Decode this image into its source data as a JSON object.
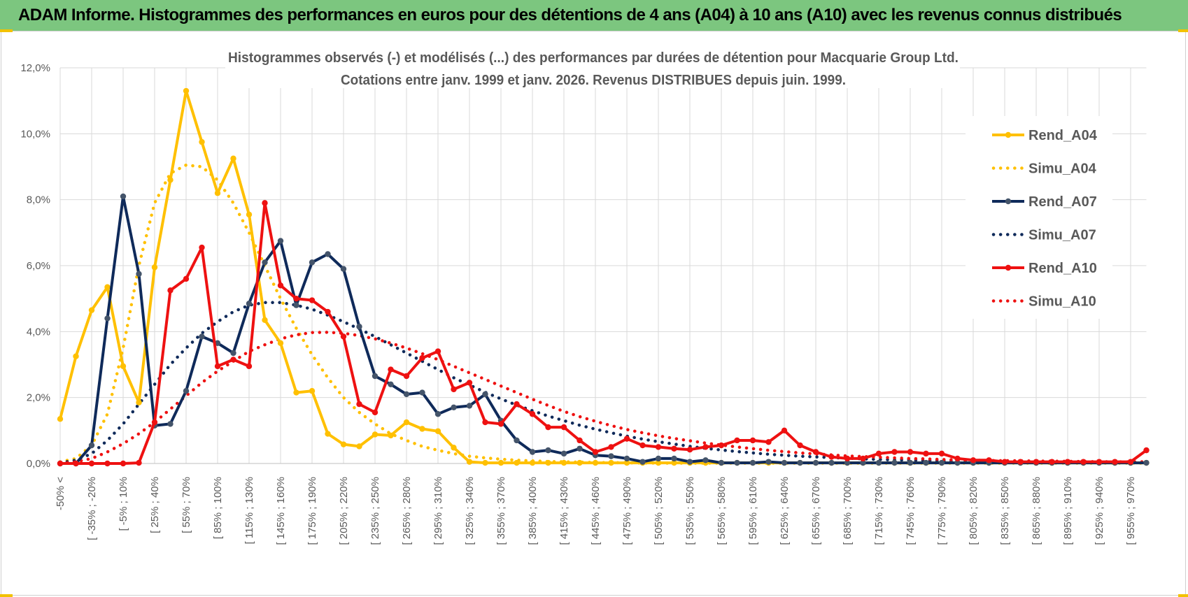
{
  "page": {
    "title": "ADAM Informe. Histogrammes des performances en euros pour des détentions de 4 ans (A04) à 10 ans (A10) avec les revenus connus distribués"
  },
  "chart_data": {
    "type": "line",
    "title": "Histogrammes observés (-) et modélisés (...) des performances par durées de détention pour Macquarie Group Ltd.",
    "subtitle": "Cotations entre janv. 1999 et janv. 2026. Revenus DISTRIBUES depuis juin. 1999.",
    "ylim": [
      0,
      12
    ],
    "y_ticks": [
      "0,0%",
      "2,0%",
      "4,0%",
      "6,0%",
      "8,0%",
      "10,0%",
      "12,0%"
    ],
    "x_tick_labels": [
      "-50% <",
      "[ -35% ; -20%",
      "[ -5% ; 10%",
      "[ 25% ; 40%",
      "[ 55% ; 70%",
      "[ 85% ; 100%",
      "[ 115% ; 130%",
      "[ 145% ; 160%",
      "[ 175% ; 190%",
      "[ 205% ; 220%",
      "[ 235% ; 250%",
      "[ 265% ; 280%",
      "[ 295% ; 310%",
      "[ 325% ; 340%",
      "[ 355% ; 370%",
      "[ 385% ; 400%",
      "[ 415% ; 430%",
      "[ 445% ; 460%",
      "[ 475% ; 490%",
      "[ 505% ; 520%",
      "[ 535% ; 550%",
      "[ 565% ; 580%",
      "[ 595% ; 610%",
      "[ 625% ; 640%",
      "[ 655% ; 670%",
      "[ 685% ; 700%",
      "[ 715% ; 730%",
      "[ 745% ; 760%",
      "[ 775% ; 790%",
      "[ 805% ; 820%",
      "[ 835% ; 850%",
      "[ 865% ; 880%",
      "[ 895% ; 910%",
      "[ 925% ; 940%",
      "[ 955% ; 970%"
    ],
    "grid": true,
    "legend_position": "right",
    "series": [
      {
        "name": "Rend_A04",
        "style": "solid",
        "color": "#ffc000",
        "values": [
          1.35,
          3.25,
          4.65,
          5.35,
          2.95,
          1.85,
          5.95,
          8.6,
          11.3,
          9.75,
          8.2,
          9.25,
          7.55,
          4.35,
          3.65,
          2.15,
          2.2,
          0.9,
          0.58,
          0.52,
          0.88,
          0.85,
          1.25,
          1.05,
          0.98,
          0.48,
          0.05,
          0.02,
          0.02,
          0.02,
          0.02,
          0.02,
          0.02,
          0.02,
          0.02,
          0.02,
          0.02,
          0.02,
          0.02,
          0.02,
          0.02,
          0.02,
          0.02,
          0.02,
          0.02,
          0.02,
          0.02,
          0.02,
          0.02,
          0.02,
          0.02,
          0.02,
          0.02,
          0.02,
          0.02,
          0.02,
          0.02,
          0.02,
          0.02,
          0.02,
          0.02,
          0.02,
          0.02,
          0.02,
          0.02,
          0.02,
          0.02,
          0.02,
          0.02,
          0.02
        ]
      },
      {
        "name": "Simu_A04",
        "style": "dotted",
        "color": "#ffc000",
        "values": [
          0.05,
          0.15,
          0.55,
          1.5,
          3.5,
          6.0,
          7.9,
          8.8,
          9.05,
          9.0,
          8.6,
          7.9,
          7.0,
          6.0,
          5.0,
          4.1,
          3.3,
          2.6,
          2.0,
          1.55,
          1.2,
          0.9,
          0.7,
          0.52,
          0.4,
          0.3,
          0.22,
          0.17,
          0.13,
          0.1,
          0.08,
          0.06,
          0.05,
          0.04,
          0.03,
          0.025,
          0.02,
          0.015,
          0.01,
          0.01,
          0.01,
          0.01,
          0.01,
          0.01,
          0.01,
          0.01,
          0.01,
          0.01,
          0.01,
          0.01,
          0.01,
          0.01,
          0.01,
          0.01,
          0.01,
          0.01,
          0.01,
          0.01,
          0.01,
          0.01,
          0.01,
          0.01,
          0.01,
          0.01,
          0.01,
          0.01,
          0.01,
          0.01,
          0.01,
          0.01
        ]
      },
      {
        "name": "Rend_A07",
        "style": "solid",
        "color": "#0f2a5a",
        "values": [
          0.0,
          0.0,
          0.55,
          4.4,
          8.1,
          5.75,
          1.15,
          1.2,
          2.2,
          3.85,
          3.65,
          3.35,
          4.85,
          6.1,
          6.75,
          4.8,
          6.1,
          6.35,
          5.9,
          4.15,
          2.65,
          2.4,
          2.1,
          2.15,
          1.5,
          1.7,
          1.75,
          2.1,
          1.3,
          0.7,
          0.35,
          0.4,
          0.3,
          0.45,
          0.25,
          0.22,
          0.15,
          0.05,
          0.15,
          0.15,
          0.05,
          0.1,
          0.02,
          0.02,
          0.02,
          0.05,
          0.02,
          0.02,
          0.02,
          0.02,
          0.02,
          0.02,
          0.02,
          0.02,
          0.02,
          0.02,
          0.02,
          0.02,
          0.02,
          0.02,
          0.02,
          0.02,
          0.02,
          0.02,
          0.02,
          0.02,
          0.02,
          0.02,
          0.02,
          0.02
        ]
      },
      {
        "name": "Simu_A07",
        "style": "dotted",
        "color": "#0f2a5a",
        "values": [
          0.02,
          0.1,
          0.3,
          0.7,
          1.2,
          1.8,
          2.4,
          3.0,
          3.5,
          3.95,
          4.3,
          4.6,
          4.8,
          4.88,
          4.88,
          4.8,
          4.68,
          4.5,
          4.3,
          4.08,
          3.85,
          3.6,
          3.35,
          3.1,
          2.85,
          2.6,
          2.38,
          2.16,
          1.96,
          1.77,
          1.6,
          1.44,
          1.3,
          1.16,
          1.04,
          0.93,
          0.83,
          0.74,
          0.66,
          0.59,
          0.52,
          0.46,
          0.41,
          0.36,
          0.32,
          0.28,
          0.25,
          0.22,
          0.2,
          0.18,
          0.16,
          0.14,
          0.12,
          0.11,
          0.1,
          0.09,
          0.08,
          0.07,
          0.06,
          0.055,
          0.05,
          0.045,
          0.04,
          0.035,
          0.03,
          0.03,
          0.03,
          0.03,
          0.03,
          0.03
        ]
      },
      {
        "name": "Rend_A10",
        "style": "solid",
        "color": "#ee1111",
        "values": [
          0.0,
          0.0,
          0.0,
          0.0,
          0.0,
          0.02,
          1.25,
          5.25,
          5.6,
          6.55,
          2.95,
          3.15,
          2.95,
          7.9,
          5.4,
          5.0,
          4.95,
          4.6,
          3.85,
          1.8,
          1.55,
          2.85,
          2.65,
          3.2,
          3.4,
          2.25,
          2.45,
          1.25,
          1.2,
          1.8,
          1.5,
          1.1,
          1.1,
          0.7,
          0.35,
          0.5,
          0.75,
          0.55,
          0.5,
          0.45,
          0.42,
          0.5,
          0.55,
          0.7,
          0.7,
          0.65,
          1.0,
          0.55,
          0.35,
          0.2,
          0.15,
          0.15,
          0.3,
          0.35,
          0.35,
          0.3,
          0.3,
          0.15,
          0.1,
          0.1,
          0.05,
          0.05,
          0.05,
          0.05,
          0.05,
          0.05,
          0.05,
          0.05,
          0.05,
          0.4
        ]
      },
      {
        "name": "Simu_A10",
        "style": "dotted",
        "color": "#ee1111",
        "values": [
          0.0,
          0.05,
          0.15,
          0.35,
          0.6,
          0.9,
          1.25,
          1.65,
          2.05,
          2.45,
          2.8,
          3.1,
          3.4,
          3.6,
          3.78,
          3.9,
          3.97,
          3.98,
          3.95,
          3.88,
          3.78,
          3.65,
          3.5,
          3.33,
          3.15,
          2.95,
          2.75,
          2.55,
          2.35,
          2.15,
          1.95,
          1.76,
          1.58,
          1.42,
          1.28,
          1.15,
          1.03,
          0.93,
          0.84,
          0.76,
          0.69,
          0.62,
          0.56,
          0.5,
          0.45,
          0.4,
          0.36,
          0.32,
          0.29,
          0.26,
          0.23,
          0.21,
          0.19,
          0.17,
          0.15,
          0.14,
          0.12,
          0.11,
          0.1,
          0.09,
          0.085,
          0.08,
          0.075,
          0.07,
          0.065,
          0.06,
          0.055,
          0.05,
          0.05,
          0.05
        ]
      }
    ]
  }
}
